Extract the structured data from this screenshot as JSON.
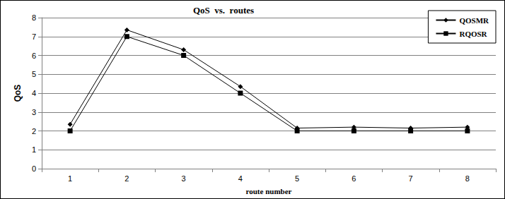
{
  "chart_data": {
    "type": "line",
    "title": "QoS  vs.  routes",
    "x_label": "route number",
    "y_label": "QoS",
    "categories": [
      "1",
      "2",
      "3",
      "4",
      "5",
      "6",
      "7",
      "8"
    ],
    "series": [
      {
        "name": "QOSMR",
        "color": "#000000",
        "marker": "diamond",
        "values": [
          2.35,
          7.35,
          6.3,
          4.35,
          2.15,
          2.2,
          2.15,
          2.2
        ]
      },
      {
        "name": "RQOSR",
        "color": "#000000",
        "marker": "square",
        "values": [
          2,
          7,
          6,
          4,
          2,
          2,
          2,
          2
        ]
      }
    ],
    "ylim": [
      0,
      8
    ],
    "yticks": [
      0,
      1,
      2,
      3,
      4,
      5,
      6,
      7,
      8
    ],
    "grid": true,
    "legend": "top-right"
  }
}
